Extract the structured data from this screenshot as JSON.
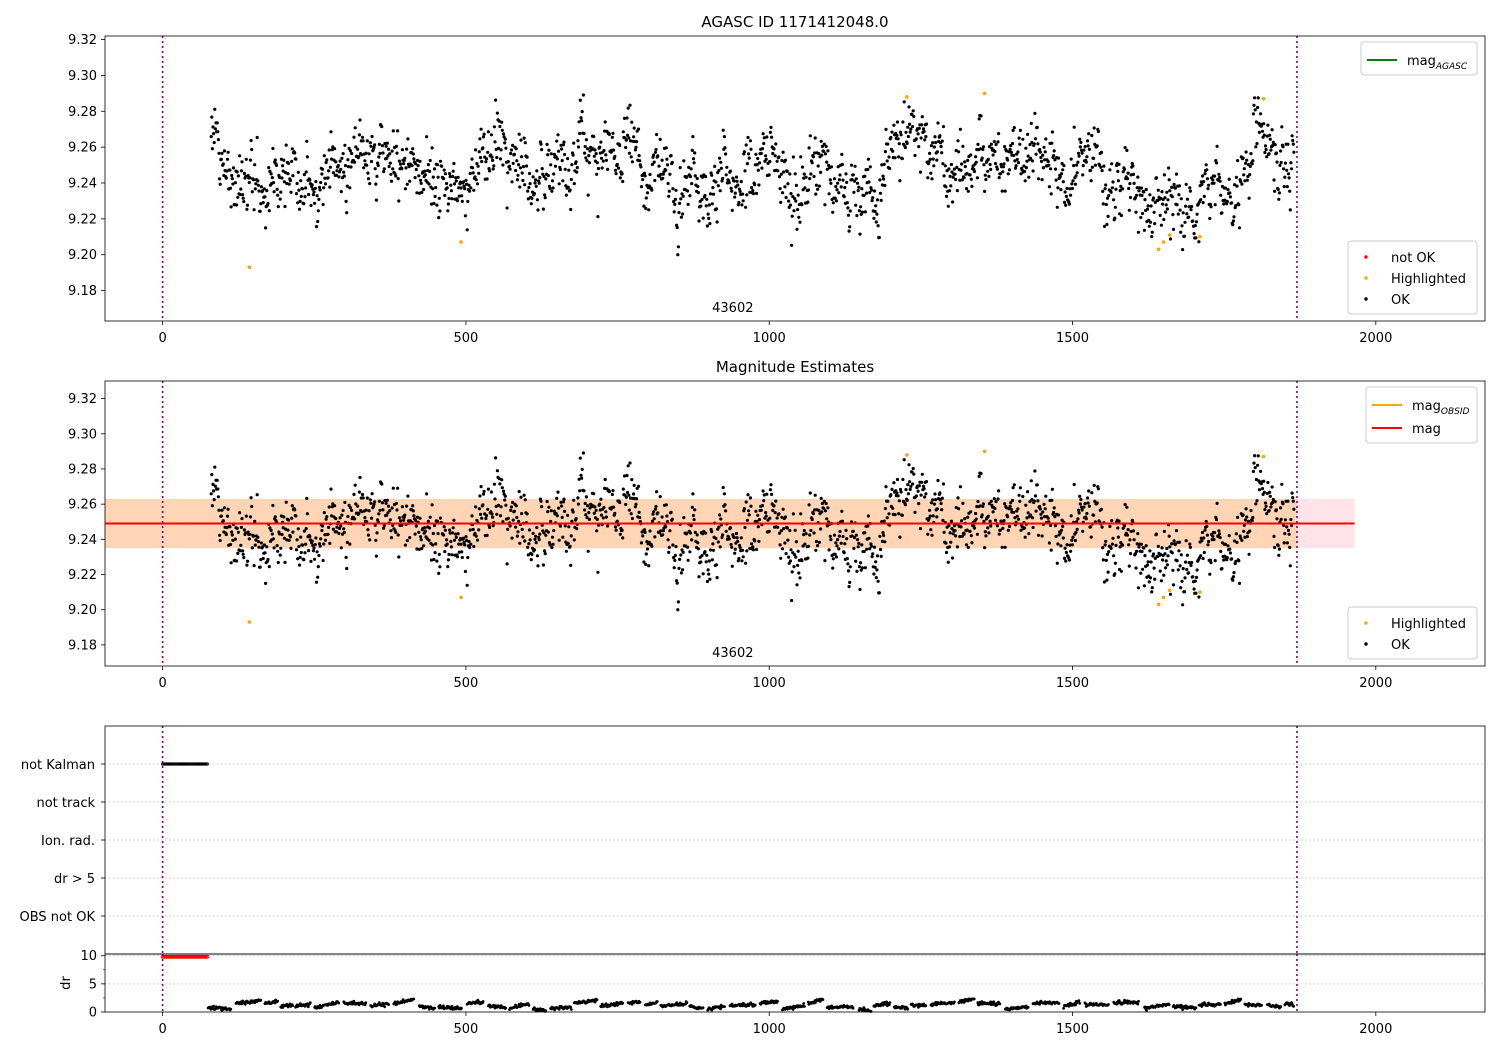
{
  "chart_data": [
    {
      "type": "scatter",
      "title": "AGASC ID 1171412048.0",
      "xlim": [
        -95,
        2180
      ],
      "ylim": [
        9.163,
        9.322
      ],
      "x_ticks": [
        0,
        500,
        1000,
        1500,
        2000
      ],
      "y_ticks": [
        9.18,
        9.2,
        9.22,
        9.24,
        9.26,
        9.28,
        9.3,
        9.32
      ],
      "vlines": [
        0,
        1870
      ],
      "annotation": "43602",
      "lines": [
        {
          "name": "mag_AGASC",
          "color": "#008000"
        }
      ],
      "legend_lines": [
        {
          "label": "mag",
          "sub": "AGASC",
          "color": "#008000"
        }
      ],
      "legend_points": [
        {
          "label": "not OK",
          "color": "#ff0000"
        },
        {
          "label": "Highlighted",
          "color": "#ffa500"
        },
        {
          "label": "OK",
          "color": "#000000"
        }
      ],
      "series": [
        {
          "name": "OK",
          "color": "#000000",
          "x_range": [
            80,
            1865
          ],
          "n_points": 1790,
          "profile": [
            [
              80,
              9.268
            ],
            [
              110,
              9.248
            ],
            [
              130,
              9.228
            ],
            [
              150,
              9.25
            ],
            [
              200,
              9.25
            ],
            [
              250,
              9.238
            ],
            [
              300,
              9.258
            ],
            [
              350,
              9.256
            ],
            [
              400,
              9.25
            ],
            [
              450,
              9.24
            ],
            [
              500,
              9.24
            ],
            [
              550,
              9.262
            ],
            [
              600,
              9.245
            ],
            [
              650,
              9.255
            ],
            [
              700,
              9.26
            ],
            [
              750,
              9.255
            ],
            [
              800,
              9.25
            ],
            [
              850,
              9.24
            ],
            [
              900,
              9.235
            ],
            [
              950,
              9.242
            ],
            [
              1000,
              9.246
            ],
            [
              1050,
              9.248
            ],
            [
              1100,
              9.246
            ],
            [
              1160,
              9.244
            ],
            [
              1170,
              9.228
            ],
            [
              1200,
              9.256
            ],
            [
              1250,
              9.26
            ],
            [
              1300,
              9.252
            ],
            [
              1350,
              9.262
            ],
            [
              1400,
              9.262
            ],
            [
              1450,
              9.255
            ],
            [
              1500,
              9.244
            ],
            [
              1550,
              9.252
            ],
            [
              1600,
              9.238
            ],
            [
              1620,
              9.225
            ],
            [
              1680,
              9.232
            ],
            [
              1750,
              9.232
            ],
            [
              1770,
              9.228
            ],
            [
              1800,
              9.265
            ],
            [
              1830,
              9.262
            ],
            [
              1865,
              9.248
            ]
          ]
        },
        {
          "name": "Highlighted",
          "color": "#ffa500",
          "points": [
            [
              143,
              9.193
            ],
            [
              492,
              9.207
            ],
            [
              1227,
              9.288
            ],
            [
              1355,
              9.29
            ],
            [
              1642,
              9.203
            ],
            [
              1650,
              9.207
            ],
            [
              1660,
              9.211
            ],
            [
              1710,
              9.21
            ],
            [
              1815,
              9.287
            ]
          ]
        },
        {
          "name": "not OK",
          "color": "#ff0000",
          "points": []
        }
      ]
    },
    {
      "type": "scatter",
      "title": "Magnitude Estimates",
      "xlim": [
        -95,
        2180
      ],
      "ylim": [
        9.168,
        9.33
      ],
      "x_ticks": [
        0,
        500,
        1000,
        1500,
        2000
      ],
      "y_ticks": [
        9.18,
        9.2,
        9.22,
        9.24,
        9.26,
        9.28,
        9.3,
        9.32
      ],
      "vlines": [
        0,
        1870
      ],
      "annotation": "43602",
      "mag": 9.249,
      "band": [
        9.235,
        9.263
      ],
      "band_x": [
        -95,
        1965
      ],
      "lines": [
        {
          "name": "mag_OBSID",
          "color": "#ffa500"
        },
        {
          "name": "mag",
          "color": "#ff0000"
        }
      ],
      "legend_lines": [
        {
          "label": "mag",
          "sub": "OBSID",
          "color": "#ffa500"
        },
        {
          "label": "mag",
          "sub": "",
          "color": "#ff0000"
        }
      ],
      "legend_points": [
        {
          "label": "Highlighted",
          "color": "#ffa500"
        },
        {
          "label": "OK",
          "color": "#000000"
        }
      ],
      "series_ref": "same as chart 0"
    },
    {
      "type": "scatter",
      "xlim": [
        -95,
        2180
      ],
      "categories": [
        "not Kalman",
        "not track",
        "Ion. rad.",
        "dr > 5",
        "OBS not OK"
      ],
      "x_ticks": [
        0,
        500,
        1000,
        1500,
        2000
      ],
      "vlines": [
        0,
        1870
      ],
      "flag_series": [
        {
          "category": "not Kalman",
          "x_range": [
            0,
            75
          ],
          "color": "#000000"
        }
      ]
    },
    {
      "type": "scatter",
      "ylabel": "dr",
      "xlim": [
        -95,
        2180
      ],
      "ylim": [
        0,
        10.3
      ],
      "x_ticks": [
        0,
        500,
        1000,
        1500,
        2000
      ],
      "y_ticks": [
        0,
        5,
        10
      ],
      "vlines": [
        0,
        1870
      ],
      "series": [
        {
          "name": "dr",
          "color": "#000000",
          "x_range": [
            75,
            1865
          ],
          "approx_range": [
            0.3,
            2.3
          ]
        },
        {
          "name": "flagged",
          "color": "#ff0000",
          "x_range": [
            0,
            75
          ],
          "value": 9.8
        }
      ]
    }
  ]
}
